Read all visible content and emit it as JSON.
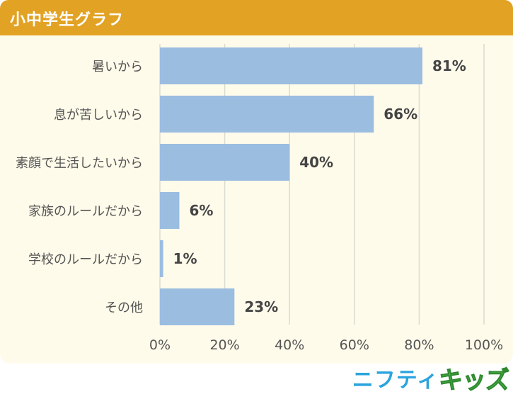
{
  "header": {
    "title": "小中学生グラフ"
  },
  "logo": {
    "part1": "ニフティ",
    "part2": "キッズ"
  },
  "colors": {
    "header_bg": "#e2a224",
    "panel_bg": "#fffbea",
    "bar": "#9bbde0",
    "grid": "#d7dcd2",
    "label_text": "#555555",
    "value_text": "#444444"
  },
  "chart_data": {
    "type": "bar",
    "orientation": "horizontal",
    "title": "小中学生グラフ",
    "categories": [
      "暑いから",
      "息が苦しいから",
      "素顔で生活したいから",
      "家族のルールだから",
      "学校のルールだから",
      "その他"
    ],
    "values": [
      81,
      66,
      40,
      6,
      1,
      23
    ],
    "value_labels": [
      "81%",
      "66%",
      "40%",
      "6%",
      "1%",
      "23%"
    ],
    "xlim": [
      0,
      100
    ],
    "xticks": [
      0,
      20,
      40,
      60,
      80,
      100
    ],
    "xtick_labels": [
      "0%",
      "20%",
      "40%",
      "60%",
      "80%",
      "100%"
    ],
    "grid": true,
    "xlabel": "",
    "ylabel": ""
  }
}
